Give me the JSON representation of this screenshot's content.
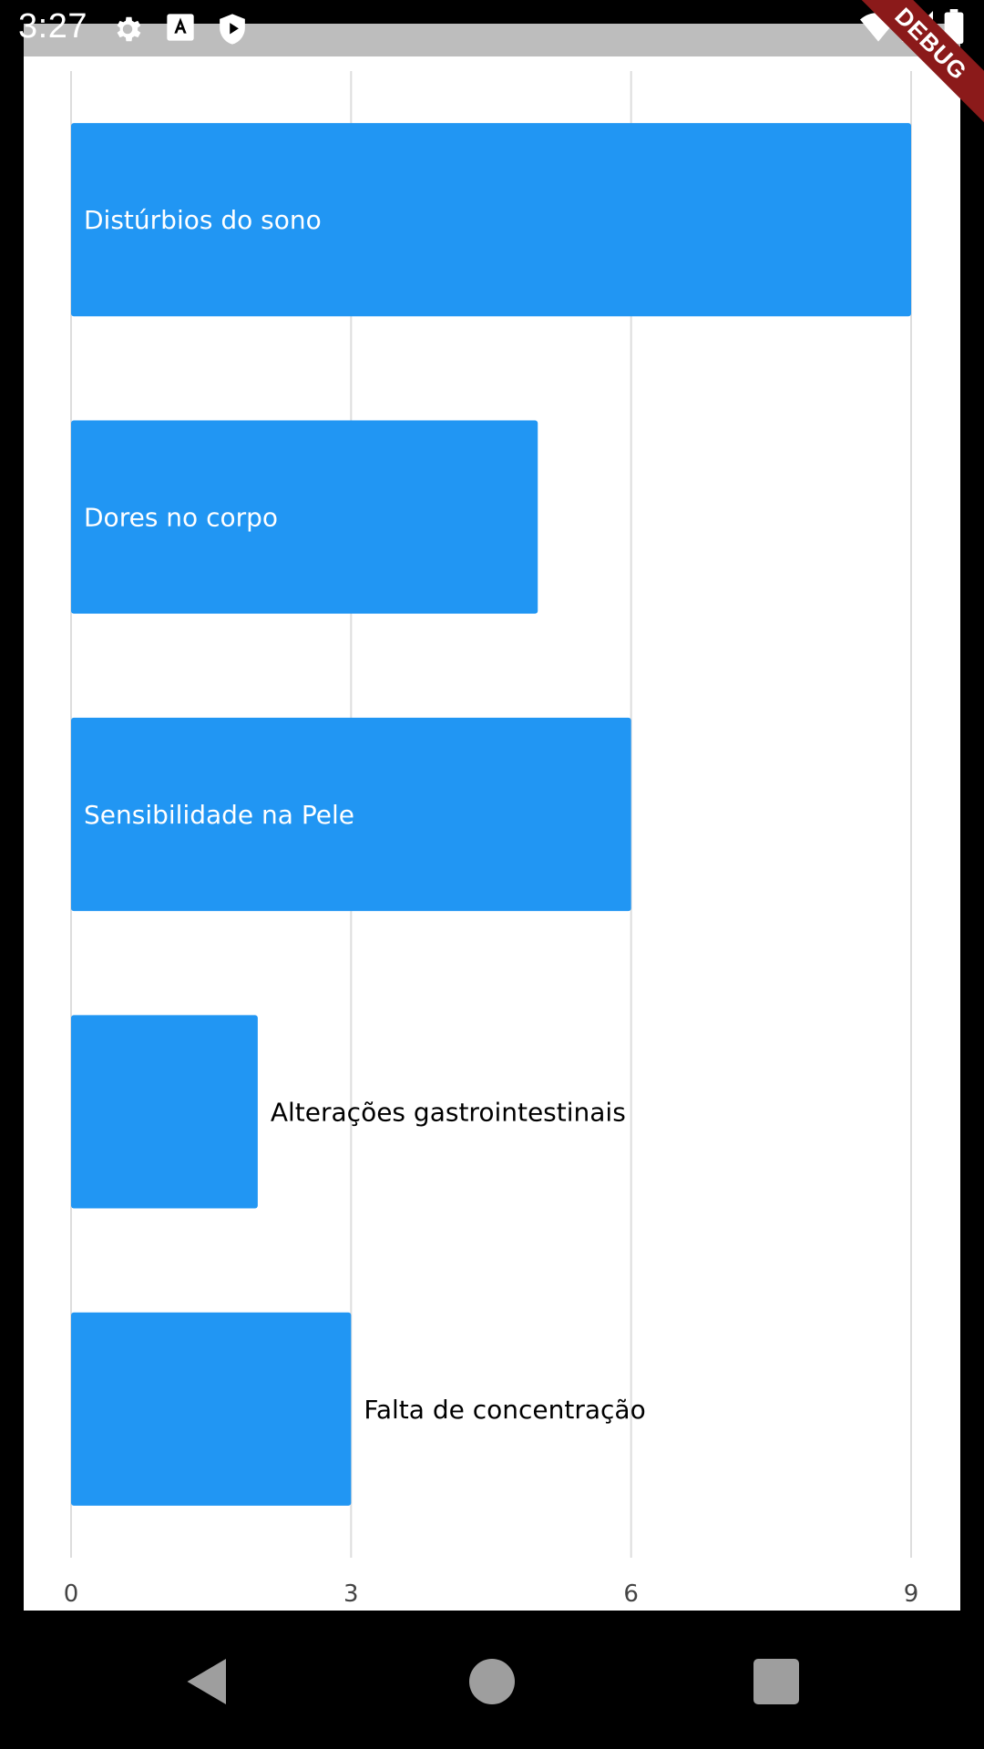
{
  "status_bar": {
    "time": "3:27",
    "left_icons": [
      "gear-icon",
      "text-a-icon",
      "shield-play-icon"
    ],
    "right_icons": [
      "wifi-icon",
      "cell-signal-icon",
      "battery-icon"
    ]
  },
  "debug_banner": {
    "label": "DEBUG",
    "color": "#8b1a1a"
  },
  "chart_data": {
    "type": "bar",
    "orientation": "horizontal",
    "categories": [
      "Distúrbios do sono",
      "Dores no corpo",
      "Sensibilidade na Pele",
      "Alterações gastrointestinais",
      "Falta de concentração"
    ],
    "values": [
      9,
      5,
      6,
      2,
      3
    ],
    "xlim": [
      0,
      9
    ],
    "xticks": [
      "0",
      "3",
      "6",
      "9"
    ],
    "grid": true,
    "bar_color": "#2196f3",
    "label_inside_color": "#ffffff",
    "label_outside_color": "#000000"
  },
  "nav_bar": {
    "buttons": [
      "back-icon",
      "home-icon",
      "recents-icon"
    ]
  }
}
